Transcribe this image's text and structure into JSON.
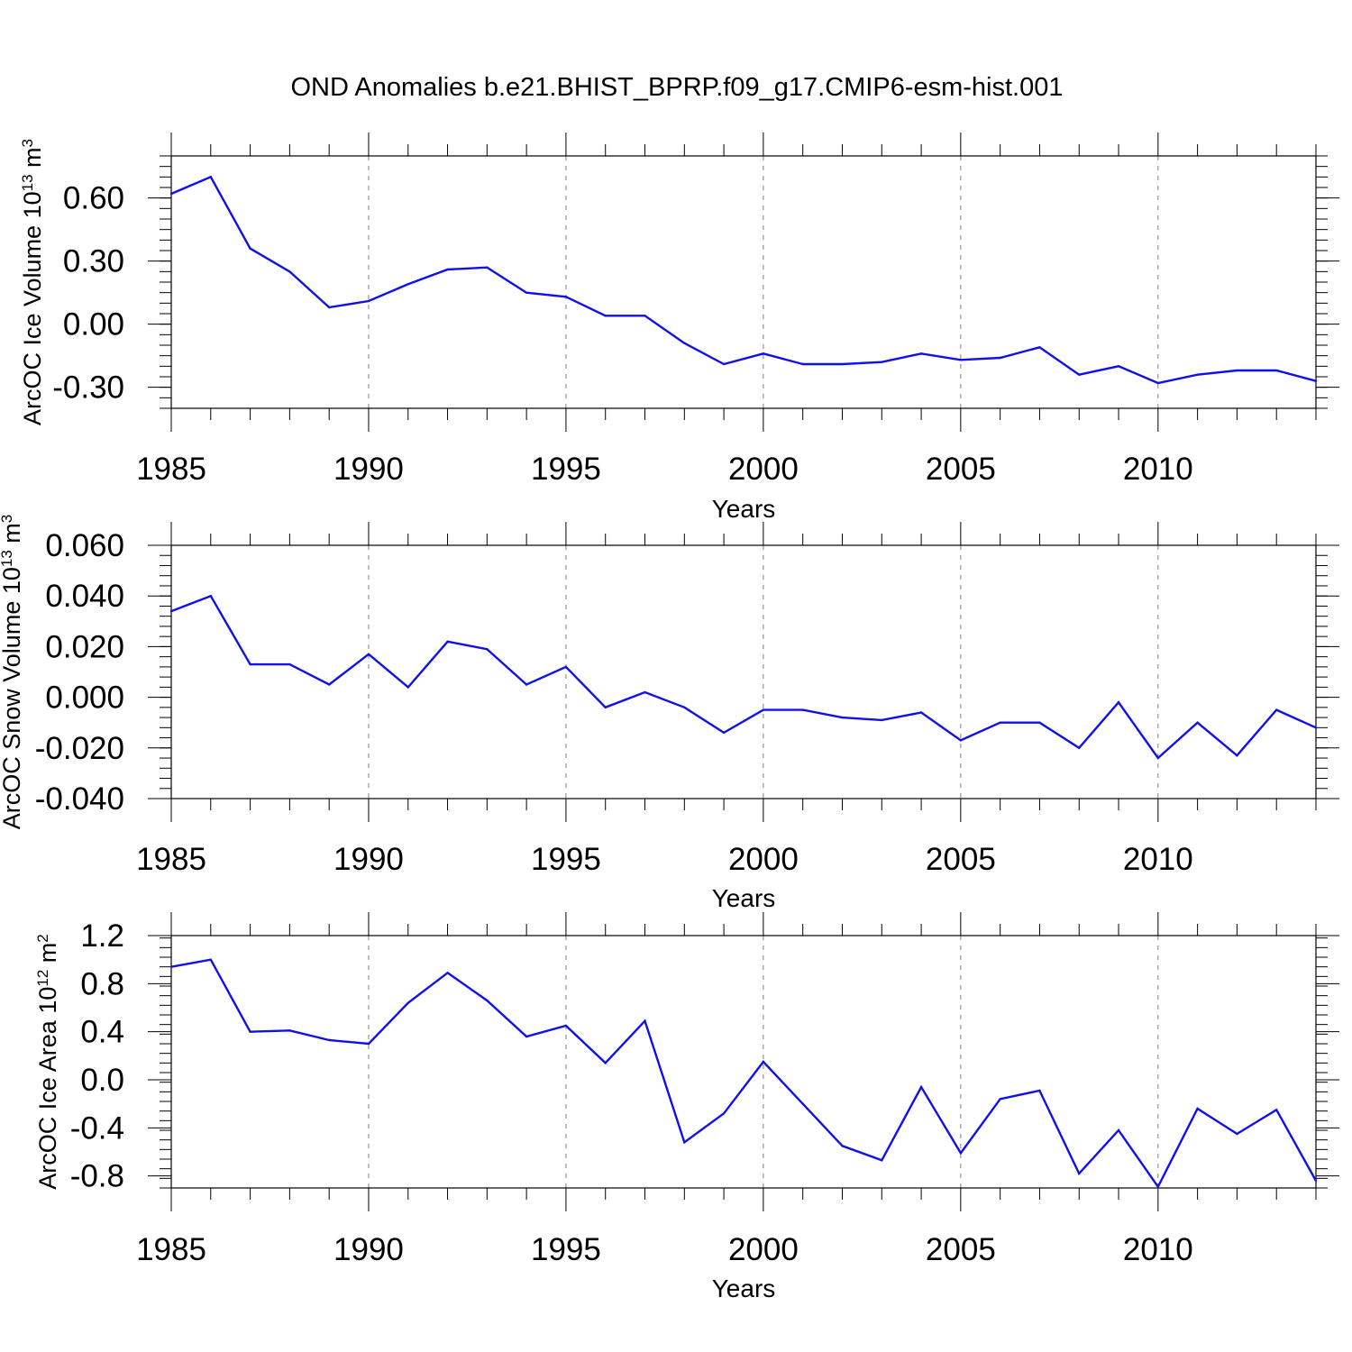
{
  "figure": {
    "title": "OND Anomalies b.e21.BHIST_BPRP.f09_g17.CMIP6-esm-hist.001",
    "line_color": "#1010ee",
    "grid_color": "#808080"
  },
  "chart_data": [
    {
      "type": "line",
      "xlabel": "Years",
      "ylabel": {
        "text": "ArcOC Ice Volume 10",
        "exp1": "13",
        "mid": " m",
        "exp2": "3"
      },
      "xlim": [
        1985,
        2014
      ],
      "ylim": [
        -0.4,
        0.8
      ],
      "xticks": [
        1985,
        1990,
        1995,
        2000,
        2005,
        2010
      ],
      "yticks": [
        -0.3,
        0.0,
        0.3,
        0.6
      ],
      "ytick_labels": [
        "-0.30",
        "0.00",
        "0.30",
        "0.60"
      ],
      "y_minor_step": 0.05,
      "grid": "vertical dashed at x major ticks",
      "x": [
        1985,
        1986,
        1987,
        1988,
        1989,
        1990,
        1991,
        1992,
        1993,
        1994,
        1995,
        1996,
        1997,
        1998,
        1999,
        2000,
        2001,
        2002,
        2003,
        2004,
        2005,
        2006,
        2007,
        2008,
        2009,
        2010,
        2011,
        2012,
        2013,
        2014
      ],
      "series": [
        {
          "values": [
            0.62,
            0.7,
            0.36,
            0.25,
            0.08,
            0.11,
            0.19,
            0.26,
            0.27,
            0.15,
            0.13,
            0.04,
            0.04,
            -0.09,
            -0.19,
            -0.14,
            -0.19,
            -0.19,
            -0.18,
            -0.14,
            -0.17,
            -0.16,
            -0.11,
            -0.24,
            -0.2,
            -0.28,
            -0.24,
            -0.22,
            -0.22,
            -0.27
          ]
        }
      ]
    },
    {
      "type": "line",
      "xlabel": "Years",
      "ylabel": {
        "text": "ArcOC Snow Volume 10",
        "exp1": "13",
        "mid": " m",
        "exp2": "3"
      },
      "xlim": [
        1985,
        2014
      ],
      "ylim": [
        -0.04,
        0.06
      ],
      "xticks": [
        1985,
        1990,
        1995,
        2000,
        2005,
        2010
      ],
      "yticks": [
        -0.04,
        -0.02,
        0.0,
        0.02,
        0.04,
        0.06
      ],
      "ytick_labels": [
        "-0.040",
        "-0.020",
        "0.000",
        "0.020",
        "0.040",
        "0.060"
      ],
      "y_minor_step": 0.004,
      "grid": "vertical dashed at x major ticks",
      "x": [
        1985,
        1986,
        1987,
        1988,
        1989,
        1990,
        1991,
        1992,
        1993,
        1994,
        1995,
        1996,
        1997,
        1998,
        1999,
        2000,
        2001,
        2002,
        2003,
        2004,
        2005,
        2006,
        2007,
        2008,
        2009,
        2010,
        2011,
        2012,
        2013,
        2014
      ],
      "series": [
        {
          "values": [
            0.034,
            0.04,
            0.013,
            0.013,
            0.005,
            0.017,
            0.004,
            0.022,
            0.019,
            0.005,
            0.012,
            -0.004,
            0.002,
            -0.004,
            -0.014,
            -0.005,
            -0.005,
            -0.008,
            -0.009,
            -0.006,
            -0.017,
            -0.01,
            -0.01,
            -0.02,
            -0.002,
            -0.024,
            -0.01,
            -0.023,
            -0.005,
            -0.012
          ]
        }
      ]
    },
    {
      "type": "line",
      "xlabel": "Years",
      "ylabel": {
        "text": "ArcOC Ice Area 10",
        "exp1": "12",
        "mid": " m",
        "exp2": "2"
      },
      "xlim": [
        1985,
        2014
      ],
      "ylim": [
        -0.9,
        1.2
      ],
      "xticks": [
        1985,
        1990,
        1995,
        2000,
        2005,
        2010
      ],
      "yticks": [
        -0.8,
        -0.4,
        0.0,
        0.4,
        0.8,
        1.2
      ],
      "ytick_labels": [
        "-0.8",
        "-0.4",
        "0.0",
        "0.4",
        "0.8",
        "1.2"
      ],
      "y_minor_step": 0.08,
      "grid": "vertical dashed at x major ticks",
      "x": [
        1985,
        1986,
        1987,
        1988,
        1989,
        1990,
        1991,
        1992,
        1993,
        1994,
        1995,
        1996,
        1997,
        1998,
        1999,
        2000,
        2001,
        2002,
        2003,
        2004,
        2005,
        2006,
        2007,
        2008,
        2009,
        2010,
        2011,
        2012,
        2013,
        2014
      ],
      "series": [
        {
          "values": [
            0.94,
            1.0,
            0.4,
            0.41,
            0.33,
            0.3,
            0.64,
            0.89,
            0.66,
            0.36,
            0.45,
            0.14,
            0.49,
            -0.52,
            -0.28,
            0.15,
            -0.2,
            -0.55,
            -0.67,
            -0.06,
            -0.61,
            -0.16,
            -0.09,
            -0.78,
            -0.42,
            -0.89,
            -0.24,
            -0.45,
            -0.25,
            -0.84
          ]
        }
      ]
    }
  ]
}
